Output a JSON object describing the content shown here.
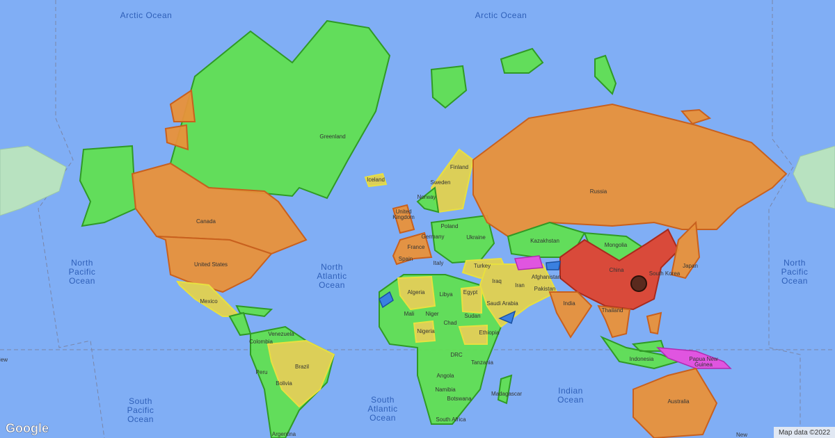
{
  "ocean_labels": [
    {
      "lines": [
        "Arctic Ocean"
      ]
    },
    {
      "lines": [
        "Arctic Ocean"
      ]
    },
    {
      "lines": [
        "North",
        "Pacific",
        "Ocean"
      ]
    },
    {
      "lines": [
        "North",
        "Atlantic",
        "Ocean"
      ]
    },
    {
      "lines": [
        "North",
        "Pacific",
        "Ocean"
      ]
    },
    {
      "lines": [
        "South",
        "Pacific",
        "Ocean"
      ]
    },
    {
      "lines": [
        "South",
        "Atlantic",
        "Ocean"
      ]
    },
    {
      "lines": [
        "Indian",
        "Ocean"
      ]
    }
  ],
  "country_labels": [
    {
      "lines": [
        "Greenland"
      ]
    },
    {
      "lines": [
        "Iceland"
      ]
    },
    {
      "lines": [
        "Canada"
      ]
    },
    {
      "lines": [
        "United States"
      ]
    },
    {
      "lines": [
        "Mexico"
      ]
    },
    {
      "lines": [
        "Colombia"
      ]
    },
    {
      "lines": [
        "Venezuela"
      ]
    },
    {
      "lines": [
        "Peru"
      ]
    },
    {
      "lines": [
        "Brazil"
      ]
    },
    {
      "lines": [
        "Bolivia"
      ]
    },
    {
      "lines": [
        "Argentina"
      ]
    },
    {
      "lines": [
        "Russia"
      ]
    },
    {
      "lines": [
        "Kazakhstan"
      ]
    },
    {
      "lines": [
        "Mongolia"
      ]
    },
    {
      "lines": [
        "China"
      ]
    },
    {
      "lines": [
        "India"
      ]
    },
    {
      "lines": [
        "Iran"
      ]
    },
    {
      "lines": [
        "Pakistan"
      ]
    },
    {
      "lines": [
        "Afghanistan"
      ]
    },
    {
      "lines": [
        "Japan"
      ]
    },
    {
      "lines": [
        "South Korea"
      ]
    },
    {
      "lines": [
        "Thailand"
      ]
    },
    {
      "lines": [
        "Indonesia"
      ]
    },
    {
      "lines": [
        "Papua New",
        "Guinea"
      ]
    },
    {
      "lines": [
        "Australia"
      ]
    },
    {
      "lines": [
        "Finland"
      ]
    },
    {
      "lines": [
        "Sweden"
      ]
    },
    {
      "lines": [
        "Norway"
      ]
    },
    {
      "lines": [
        "United",
        "Kingdom"
      ]
    },
    {
      "lines": [
        "Poland"
      ]
    },
    {
      "lines": [
        "Germany"
      ]
    },
    {
      "lines": [
        "Ukraine"
      ]
    },
    {
      "lines": [
        "France"
      ]
    },
    {
      "lines": [
        "Spain"
      ]
    },
    {
      "lines": [
        "Italy"
      ]
    },
    {
      "lines": [
        "Turkey"
      ]
    },
    {
      "lines": [
        "Iraq"
      ]
    },
    {
      "lines": [
        "Saudi Arabia"
      ]
    },
    {
      "lines": [
        "Egypt"
      ]
    },
    {
      "lines": [
        "Libya"
      ]
    },
    {
      "lines": [
        "Algeria"
      ]
    },
    {
      "lines": [
        "Mali"
      ]
    },
    {
      "lines": [
        "Niger"
      ]
    },
    {
      "lines": [
        "Chad"
      ]
    },
    {
      "lines": [
        "Sudan"
      ]
    },
    {
      "lines": [
        "Ethiopia"
      ]
    },
    {
      "lines": [
        "Nigeria"
      ]
    },
    {
      "lines": [
        "DRC"
      ]
    },
    {
      "lines": [
        "Tanzania"
      ]
    },
    {
      "lines": [
        "Angola"
      ]
    },
    {
      "lines": [
        "Namibia"
      ]
    },
    {
      "lines": [
        "Botswana"
      ]
    },
    {
      "lines": [
        "Madagascar"
      ]
    },
    {
      "lines": [
        "South Africa"
      ]
    },
    {
      "lines": [
        "New"
      ]
    },
    {
      "lines": [
        "New"
      ]
    }
  ],
  "logo": "Google",
  "attribution": "Map data ©2022"
}
